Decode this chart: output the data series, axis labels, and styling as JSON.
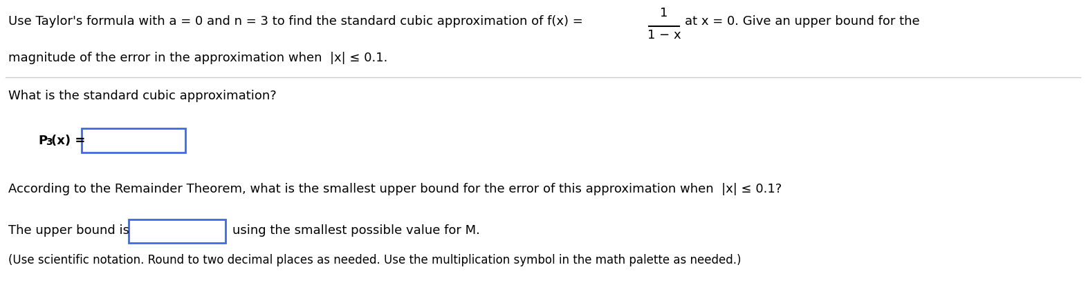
{
  "bg_color": "#ffffff",
  "text_color": "#000000",
  "separator_color": "#cccccc",
  "box_color": "#4169e1",
  "fig_w": 15.7,
  "fig_h": 4.26,
  "dpi": 100,
  "font_size_main": 13,
  "font_size_note": 12,
  "font_size_sub": 10,
  "line1_main": "Use Taylor's formula with a = 0 and n = 3 to find the standard cubic approximation of f(x) =",
  "fraction_num": "1",
  "fraction_den": "1 − x",
  "line1_end": "at x = 0. Give an upper bound for the",
  "line2": "magnitude of the error in the approximation when  |x| ≤ 0.1.",
  "q1": "What is the standard cubic approximation?",
  "p3_label": "P",
  "p3_sub": "3",
  "p3_paren": "(x) =",
  "q2": "According to the Remainder Theorem, what is the smallest upper bound for the error of this approximation when  |x| ≤ 0.1?",
  "upper_before": "The upper bound is",
  "upper_after": "using the smallest possible value for M.",
  "note": "(Use scientific notation. Round to two decimal places as needed. Use the multiplication symbol in the math palette as needed.)"
}
